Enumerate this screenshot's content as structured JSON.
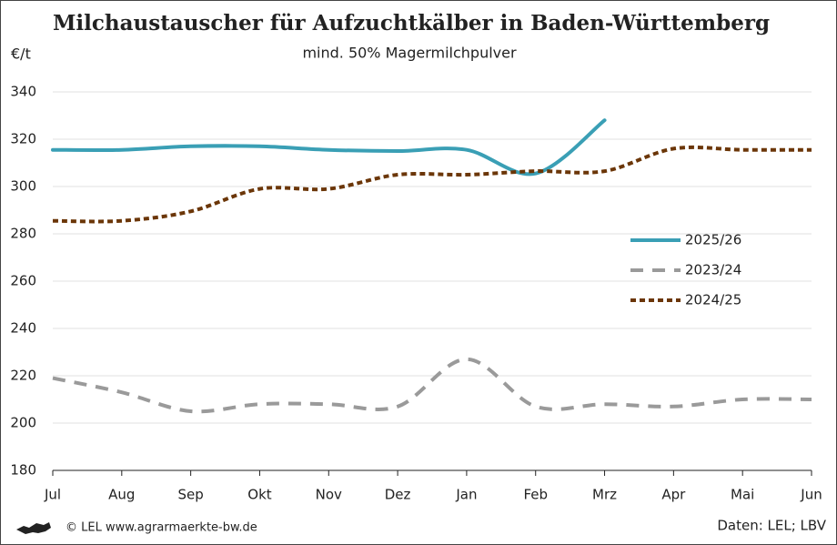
{
  "chart_data": {
    "type": "line",
    "title": "Milchaustauscher für Aufzuchtkälber in Baden-Württemberg",
    "subtitle": "mind. 50% Magermilchpulver",
    "y_label": "€/t",
    "categories": [
      "Jul",
      "Aug",
      "Sep",
      "Okt",
      "Nov",
      "Dez",
      "Jan",
      "Feb",
      "Mrz",
      "Apr",
      "Mai",
      "Jun"
    ],
    "series": [
      {
        "name": "2025/26",
        "color": "#3a9fb5",
        "dash": "solid",
        "values": [
          315.5,
          315.5,
          317,
          317,
          315.5,
          315,
          315.5,
          305.5,
          328,
          null,
          null,
          null
        ]
      },
      {
        "name": "2023/24",
        "color": "#9a9a9a",
        "dash": "dashed",
        "values": [
          219,
          213,
          205,
          208,
          208,
          207,
          227,
          207,
          208,
          207,
          210,
          210
        ]
      },
      {
        "name": "2024/25",
        "color": "#6b3608",
        "dash": "dotted",
        "values": [
          285.5,
          285.5,
          289.5,
          299,
          299,
          305,
          305,
          306.5,
          306.5,
          316,
          315.5,
          315.5
        ]
      }
    ],
    "ylim": [
      180,
      340
    ],
    "yticks": [
      180,
      200,
      220,
      240,
      260,
      280,
      300,
      320,
      340
    ],
    "grid": true,
    "footer_left": "© LEL www.agrarmaerkte-bw.de",
    "footer_right": "Daten: LEL; LBV"
  }
}
